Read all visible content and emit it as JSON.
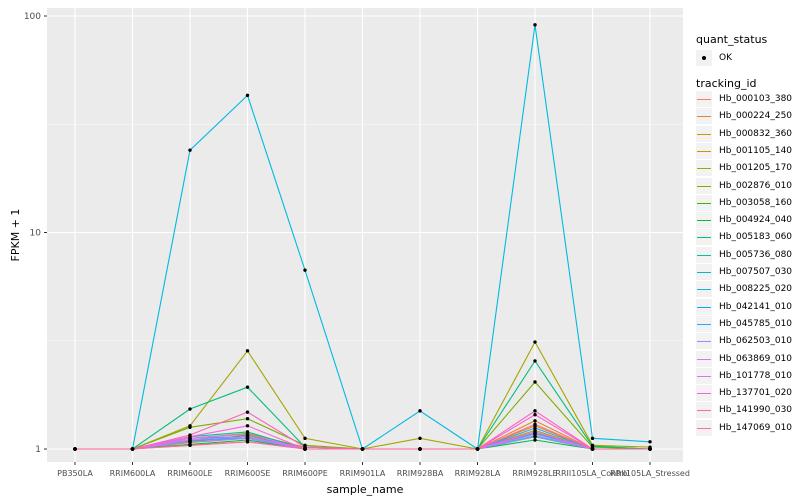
{
  "figure": {
    "panel_background": "#EBEBEB",
    "grid_color": "#FFFFFF",
    "tick_label_color": "#4D4D4D",
    "point_color": "#000000"
  },
  "axes": {
    "x_label": "sample_name",
    "y_label": "FPKM + 1"
  },
  "legend": {
    "quant_title": "quant_status",
    "quant_item_label": "OK",
    "tracking_title": "tracking_id",
    "key_background": "#F2F2F2"
  },
  "chart_data": {
    "type": "line",
    "title": "",
    "xlabel": "sample_name",
    "ylabel": "FPKM + 1",
    "y_scale": "log10",
    "y_ticks": [
      1,
      10,
      100
    ],
    "y_minor_gridlines": [
      3.1623,
      31.623
    ],
    "ylim": [
      0.93,
      110
    ],
    "grid": true,
    "legend_position": "right",
    "point_marker": "black dot on every observation (quant_status OK)",
    "categories": [
      "PB350LA",
      "RRIM600LA",
      "RRIM600LE",
      "RRIM600SE",
      "RRIM600PE",
      "RRIM901LA",
      "RRIM928BA",
      "RRIM928LA",
      "RRIM928LE",
      "RRII105LA_Control",
      "RRII105LA_Stressed"
    ],
    "series": [
      {
        "name": "Hb_000103_380",
        "color": "#F8766D",
        "values": [
          1,
          1,
          1.04,
          1.08,
          1,
          1,
          1,
          1,
          1.18,
          1,
          1
        ]
      },
      {
        "name": "Hb_000224_250",
        "color": "#EA8331",
        "values": [
          1,
          1,
          1.07,
          1.12,
          1,
          1,
          1,
          1,
          1.35,
          1,
          1
        ]
      },
      {
        "name": "Hb_000832_360",
        "color": "#D89000",
        "values": [
          1,
          1,
          1.09,
          1.14,
          1,
          1,
          1,
          1,
          1.28,
          1,
          1
        ]
      },
      {
        "name": "Hb_001105_140",
        "color": "#C09B00",
        "values": [
          1,
          1,
          1.12,
          1.18,
          1.02,
          1,
          1,
          1,
          1.22,
          1,
          1
        ]
      },
      {
        "name": "Hb_001205_170",
        "color": "#A3A500",
        "values": [
          1,
          1,
          1.28,
          2.84,
          1.12,
          1,
          1.12,
          1,
          3.12,
          1.04,
          1.02
        ]
      },
      {
        "name": "Hb_002876_010",
        "color": "#7CAE00",
        "values": [
          1,
          1,
          1.26,
          1.38,
          1.04,
          1,
          1,
          1,
          2.04,
          1.02,
          1
        ]
      },
      {
        "name": "Hb_003058_160",
        "color": "#39B600",
        "values": [
          1,
          1,
          1.08,
          1.16,
          1,
          1,
          1,
          1,
          1.14,
          1,
          1
        ]
      },
      {
        "name": "Hb_004924_040",
        "color": "#00BB4E",
        "values": [
          1,
          1,
          1.05,
          1.1,
          1,
          1,
          1,
          1,
          1.1,
          1,
          1
        ]
      },
      {
        "name": "Hb_005183_060",
        "color": "#00BF7D",
        "values": [
          1,
          1,
          1.53,
          1.93,
          1.02,
          1,
          1,
          1,
          2.55,
          1.03,
          1
        ]
      },
      {
        "name": "Hb_005736_080",
        "color": "#00C1A3",
        "values": [
          1,
          1,
          1.14,
          1.2,
          1,
          1,
          1,
          1,
          1.18,
          1,
          1
        ]
      },
      {
        "name": "Hb_007507_030",
        "color": "#00BFC4",
        "values": [
          1,
          1,
          1.1,
          1.14,
          1,
          1,
          1,
          1,
          1.15,
          1,
          1
        ]
      },
      {
        "name": "Hb_008225_020",
        "color": "#00BAE0",
        "values": [
          1,
          1,
          24,
          43,
          6.7,
          1,
          1.5,
          1,
          91,
          1.12,
          1.08
        ]
      },
      {
        "name": "Hb_042141_010",
        "color": "#00B0F6",
        "values": [
          1,
          1,
          1.1,
          1.12,
          1,
          1,
          1,
          1,
          1.2,
          1,
          1
        ]
      },
      {
        "name": "Hb_045785_010",
        "color": "#35A2FF",
        "values": [
          1,
          1,
          1.12,
          1.14,
          1,
          1,
          1,
          1,
          1.25,
          1,
          1
        ]
      },
      {
        "name": "Hb_062503_010",
        "color": "#9590FF",
        "values": [
          1,
          1,
          1.08,
          1.12,
          1,
          1,
          1,
          1,
          1.14,
          1,
          1
        ]
      },
      {
        "name": "Hb_063869_010",
        "color": "#C77CFF",
        "values": [
          1,
          1,
          1.1,
          1.14,
          1,
          1,
          1,
          1,
          1.17,
          1,
          1
        ]
      },
      {
        "name": "Hb_101778_010",
        "color": "#E76BF3",
        "values": [
          1,
          1,
          1.12,
          1.17,
          1,
          1,
          1,
          1,
          1.2,
          1,
          1
        ]
      },
      {
        "name": "Hb_137701_020",
        "color": "#FA62DB",
        "values": [
          1,
          1,
          1.14,
          1.28,
          1,
          1,
          1,
          1,
          1.44,
          1,
          1
        ]
      },
      {
        "name": "Hb_141990_030",
        "color": "#FF62BC",
        "values": [
          1,
          1,
          1.16,
          1.48,
          1.02,
          1,
          1,
          1,
          1.5,
          1,
          1
        ]
      },
      {
        "name": "Hb_147069_010",
        "color": "#FF6A98",
        "values": [
          1,
          1,
          1.04,
          1.08,
          1,
          1,
          1,
          1,
          1.3,
          1,
          1
        ]
      }
    ]
  }
}
